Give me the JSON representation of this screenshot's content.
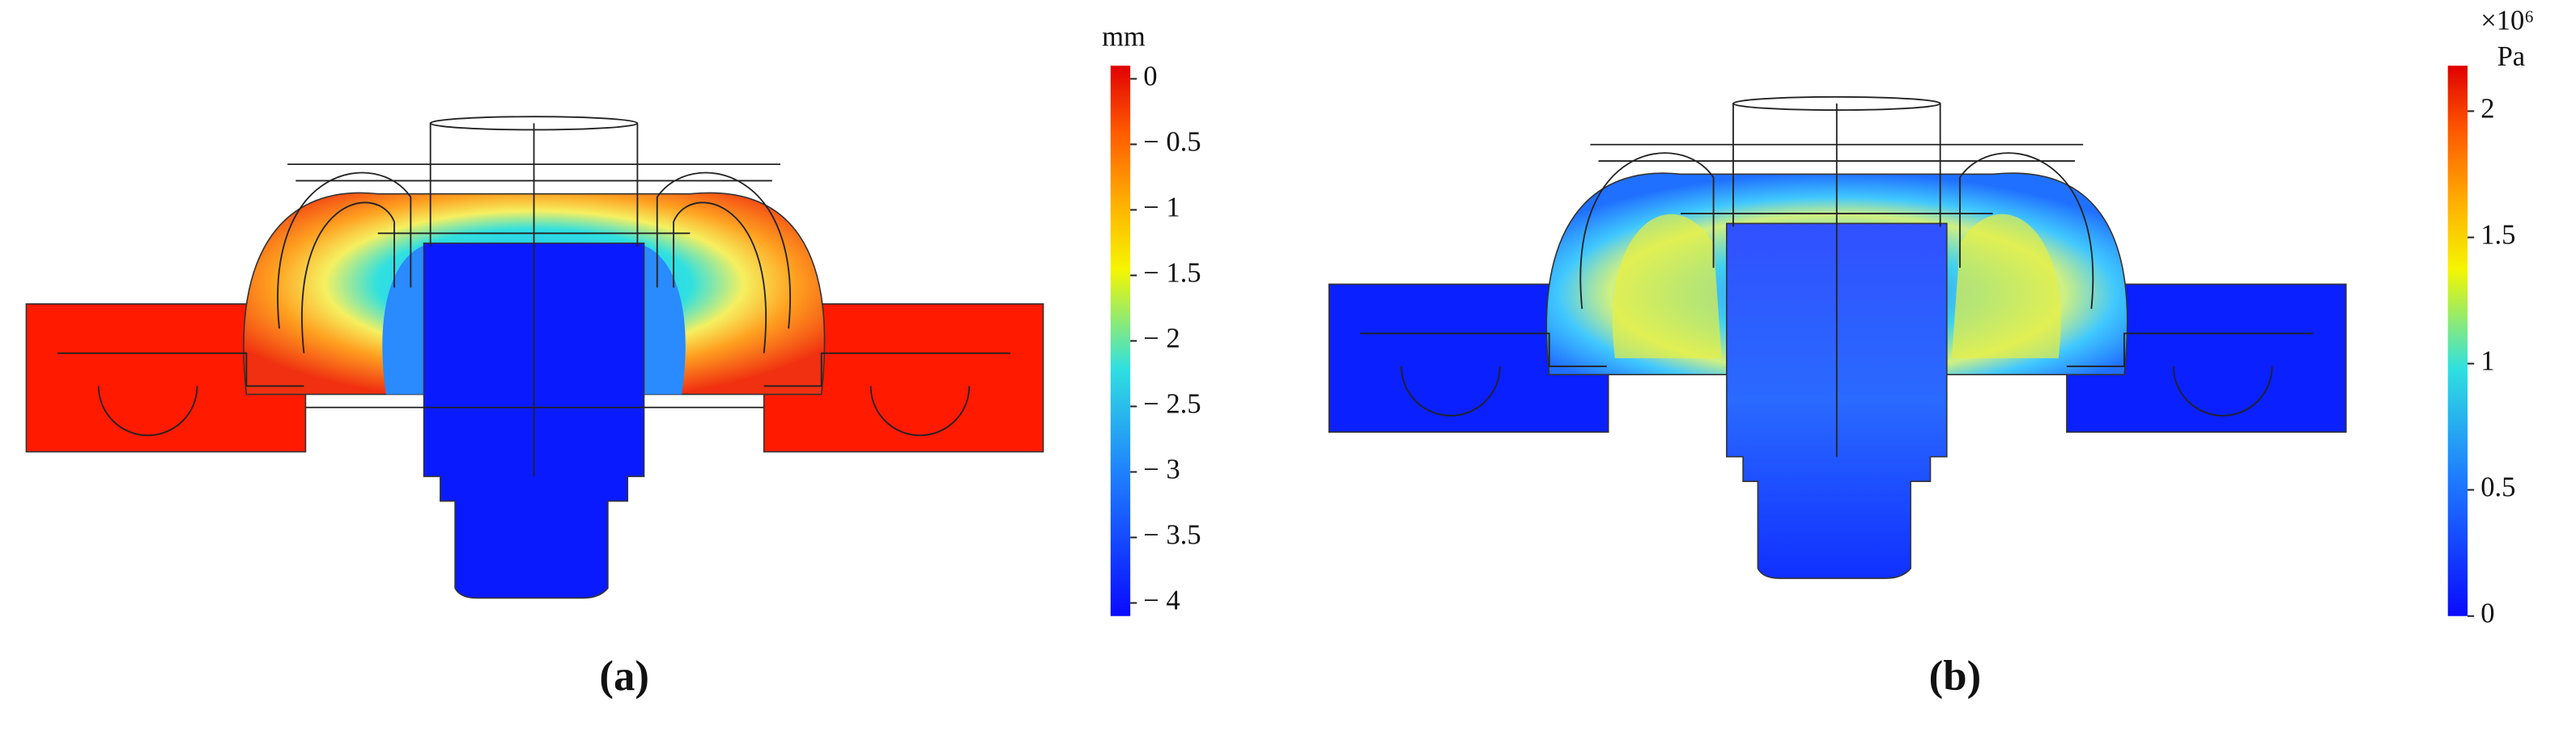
{
  "panels": [
    {
      "label": "(a)",
      "colorbar": {
        "unit": "mm",
        "limits": [
          -4.1,
          0.1
        ],
        "ticks": [
          {
            "value": 0,
            "label": "0"
          },
          {
            "value": -0.5,
            "label": "− 0.5"
          },
          {
            "value": -1,
            "label": "− 1"
          },
          {
            "value": -1.5,
            "label": "− 1.5"
          },
          {
            "value": -2,
            "label": "− 2"
          },
          {
            "value": -2.5,
            "label": "− 2.5"
          },
          {
            "value": -3,
            "label": "− 3"
          },
          {
            "value": -3.5,
            "label": "− 3.5"
          },
          {
            "value": -4,
            "label": "− 4"
          }
        ]
      }
    },
    {
      "label": "(b)",
      "colorbar": {
        "multiplier": "×10⁶",
        "unit": "Pa",
        "limits": [
          0,
          2.18
        ],
        "ticks": [
          {
            "value": 0,
            "label": "0"
          },
          {
            "value": 0.5,
            "label": "0.5"
          },
          {
            "value": 1,
            "label": "1"
          },
          {
            "value": 1.5,
            "label": "1.5"
          },
          {
            "value": 2,
            "label": "2"
          }
        ]
      }
    }
  ]
}
